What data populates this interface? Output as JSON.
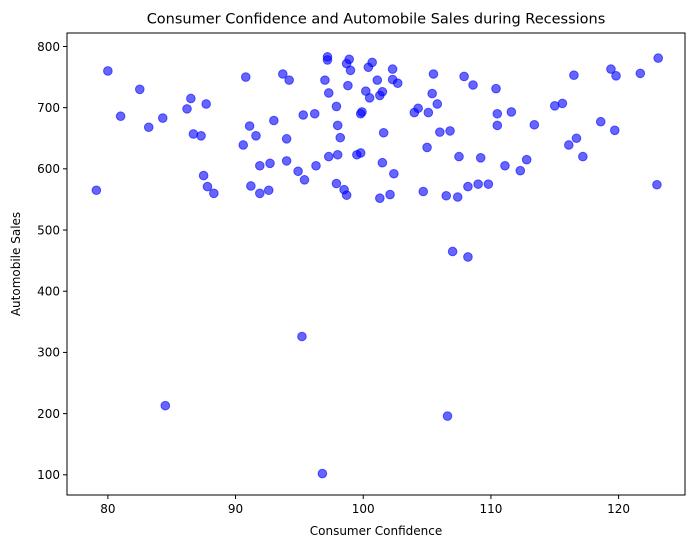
{
  "chart_data": {
    "type": "scatter",
    "title": "Consumer Confidence and Automobile Sales during Recessions",
    "xlabel": "Consumer Confidence",
    "ylabel": "Automobile Sales",
    "xlim": [
      76.8,
      125.2
    ],
    "ylim": [
      67,
      822
    ],
    "xticks": [
      80,
      90,
      100,
      110,
      120
    ],
    "yticks": [
      100,
      200,
      300,
      400,
      500,
      600,
      700,
      800
    ],
    "grid": false,
    "legend": "none",
    "marker_color": "#0000ff",
    "marker_alpha": 0.6,
    "points": [
      {
        "x": 79.1,
        "y": 565
      },
      {
        "x": 80.0,
        "y": 760
      },
      {
        "x": 81.0,
        "y": 686
      },
      {
        "x": 82.5,
        "y": 730
      },
      {
        "x": 83.2,
        "y": 668
      },
      {
        "x": 84.3,
        "y": 683
      },
      {
        "x": 84.5,
        "y": 213
      },
      {
        "x": 86.2,
        "y": 698
      },
      {
        "x": 86.5,
        "y": 715
      },
      {
        "x": 86.7,
        "y": 657
      },
      {
        "x": 87.3,
        "y": 654
      },
      {
        "x": 87.5,
        "y": 589
      },
      {
        "x": 87.7,
        "y": 706
      },
      {
        "x": 87.8,
        "y": 571
      },
      {
        "x": 88.3,
        "y": 560
      },
      {
        "x": 90.6,
        "y": 639
      },
      {
        "x": 90.8,
        "y": 750
      },
      {
        "x": 91.1,
        "y": 670
      },
      {
        "x": 91.2,
        "y": 572
      },
      {
        "x": 91.6,
        "y": 654
      },
      {
        "x": 91.9,
        "y": 560
      },
      {
        "x": 91.9,
        "y": 605
      },
      {
        "x": 92.6,
        "y": 565
      },
      {
        "x": 92.7,
        "y": 609
      },
      {
        "x": 93.0,
        "y": 679
      },
      {
        "x": 93.7,
        "y": 755
      },
      {
        "x": 94.0,
        "y": 613
      },
      {
        "x": 94.0,
        "y": 649
      },
      {
        "x": 94.2,
        "y": 745
      },
      {
        "x": 94.9,
        "y": 596
      },
      {
        "x": 95.2,
        "y": 326
      },
      {
        "x": 95.3,
        "y": 688
      },
      {
        "x": 95.4,
        "y": 582
      },
      {
        "x": 96.2,
        "y": 690
      },
      {
        "x": 96.3,
        "y": 605
      },
      {
        "x": 96.8,
        "y": 102
      },
      {
        "x": 97.0,
        "y": 745
      },
      {
        "x": 97.2,
        "y": 778
      },
      {
        "x": 97.2,
        "y": 783
      },
      {
        "x": 97.3,
        "y": 620
      },
      {
        "x": 97.3,
        "y": 724
      },
      {
        "x": 97.9,
        "y": 576
      },
      {
        "x": 97.9,
        "y": 702
      },
      {
        "x": 98.0,
        "y": 671
      },
      {
        "x": 98.0,
        "y": 623
      },
      {
        "x": 98.2,
        "y": 651
      },
      {
        "x": 98.5,
        "y": 566
      },
      {
        "x": 98.7,
        "y": 772
      },
      {
        "x": 98.7,
        "y": 557
      },
      {
        "x": 98.8,
        "y": 736
      },
      {
        "x": 98.9,
        "y": 779
      },
      {
        "x": 99.0,
        "y": 761
      },
      {
        "x": 99.5,
        "y": 623
      },
      {
        "x": 99.8,
        "y": 626
      },
      {
        "x": 99.8,
        "y": 690
      },
      {
        "x": 99.9,
        "y": 693
      },
      {
        "x": 100.2,
        "y": 727
      },
      {
        "x": 100.4,
        "y": 766
      },
      {
        "x": 100.5,
        "y": 716
      },
      {
        "x": 100.7,
        "y": 774
      },
      {
        "x": 101.1,
        "y": 745
      },
      {
        "x": 101.3,
        "y": 720
      },
      {
        "x": 101.3,
        "y": 552
      },
      {
        "x": 101.5,
        "y": 726
      },
      {
        "x": 101.5,
        "y": 610
      },
      {
        "x": 101.6,
        "y": 659
      },
      {
        "x": 102.1,
        "y": 558
      },
      {
        "x": 102.3,
        "y": 763
      },
      {
        "x": 102.3,
        "y": 746
      },
      {
        "x": 102.4,
        "y": 592
      },
      {
        "x": 102.7,
        "y": 740
      },
      {
        "x": 104.0,
        "y": 692
      },
      {
        "x": 104.3,
        "y": 699
      },
      {
        "x": 104.7,
        "y": 563
      },
      {
        "x": 105.0,
        "y": 635
      },
      {
        "x": 105.1,
        "y": 692
      },
      {
        "x": 105.4,
        "y": 723
      },
      {
        "x": 105.5,
        "y": 755
      },
      {
        "x": 105.8,
        "y": 706
      },
      {
        "x": 106.0,
        "y": 660
      },
      {
        "x": 106.5,
        "y": 556
      },
      {
        "x": 106.6,
        "y": 196
      },
      {
        "x": 106.8,
        "y": 662
      },
      {
        "x": 107.0,
        "y": 465
      },
      {
        "x": 107.4,
        "y": 554
      },
      {
        "x": 107.5,
        "y": 620
      },
      {
        "x": 107.9,
        "y": 751
      },
      {
        "x": 108.2,
        "y": 571
      },
      {
        "x": 108.2,
        "y": 456
      },
      {
        "x": 108.6,
        "y": 737
      },
      {
        "x": 109.0,
        "y": 575
      },
      {
        "x": 109.2,
        "y": 618
      },
      {
        "x": 109.8,
        "y": 575
      },
      {
        "x": 110.4,
        "y": 731
      },
      {
        "x": 110.5,
        "y": 690
      },
      {
        "x": 110.5,
        "y": 671
      },
      {
        "x": 111.1,
        "y": 605
      },
      {
        "x": 111.6,
        "y": 693
      },
      {
        "x": 112.3,
        "y": 597
      },
      {
        "x": 112.8,
        "y": 615
      },
      {
        "x": 113.4,
        "y": 672
      },
      {
        "x": 115.0,
        "y": 703
      },
      {
        "x": 115.6,
        "y": 707
      },
      {
        "x": 116.1,
        "y": 639
      },
      {
        "x": 116.5,
        "y": 753
      },
      {
        "x": 116.7,
        "y": 650
      },
      {
        "x": 117.2,
        "y": 620
      },
      {
        "x": 118.6,
        "y": 677
      },
      {
        "x": 119.4,
        "y": 763
      },
      {
        "x": 119.7,
        "y": 663
      },
      {
        "x": 119.8,
        "y": 752
      },
      {
        "x": 121.7,
        "y": 756
      },
      {
        "x": 123.0,
        "y": 574
      },
      {
        "x": 123.1,
        "y": 781
      }
    ]
  }
}
